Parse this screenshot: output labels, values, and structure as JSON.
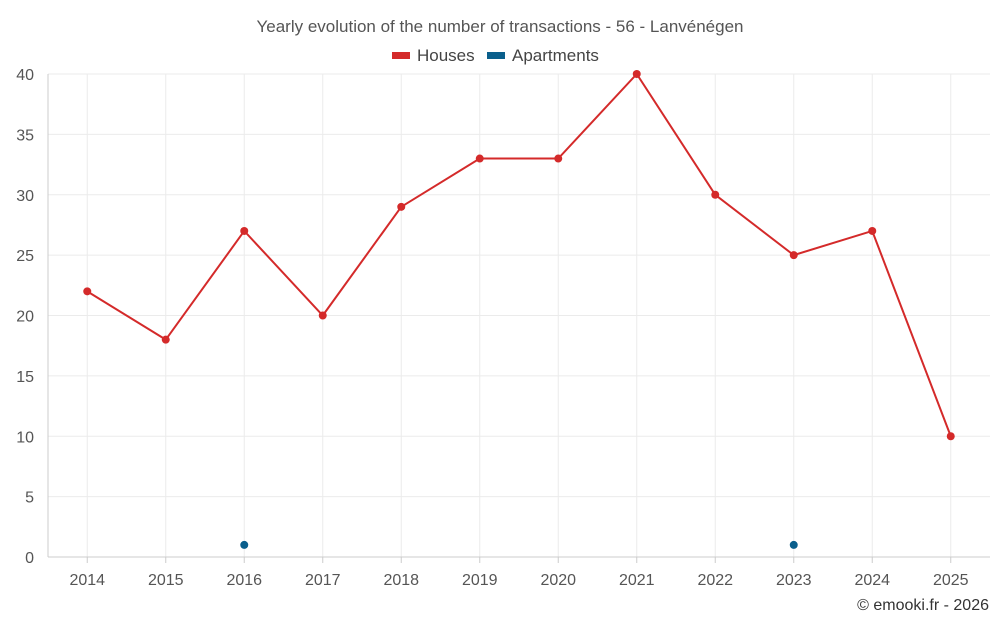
{
  "chart_data": {
    "type": "line",
    "title": "Yearly evolution of the number of transactions - 56 - Lanvénégen",
    "categories": [
      "2014",
      "2015",
      "2016",
      "2017",
      "2018",
      "2019",
      "2020",
      "2021",
      "2022",
      "2023",
      "2024",
      "2025"
    ],
    "series": [
      {
        "name": "Houses",
        "color": "#d42a2a",
        "values": [
          22,
          18,
          27,
          20,
          29,
          33,
          33,
          40,
          30,
          25,
          27,
          10
        ]
      },
      {
        "name": "Apartments",
        "color": "#0a5f8c",
        "values": [
          null,
          null,
          1,
          null,
          null,
          null,
          null,
          null,
          null,
          1,
          null,
          null
        ]
      }
    ],
    "ylim": [
      0,
      40
    ],
    "yticks": [
      0,
      5,
      10,
      15,
      20,
      25,
      30,
      35,
      40
    ],
    "grid": true,
    "legend": "top-center",
    "xlabel": "",
    "ylabel": ""
  },
  "credit": "© emooki.fr - 2026"
}
